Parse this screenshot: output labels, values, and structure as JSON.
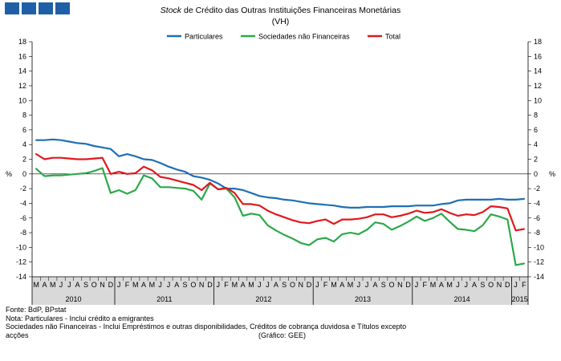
{
  "header": {
    "title_italic": "Stock",
    "title_rest": "de Crédito das Outras Instituições Financeiras Monetárias",
    "subtitle": "(VH)"
  },
  "colors": {
    "logo": "#1f5fa8",
    "particulares": "#1f6fb5",
    "sociedades": "#2ca84a",
    "total": "#e0191f"
  },
  "chart_data": {
    "type": "line",
    "title": "Stock de Crédito das Outras Instituições Financeiras Monetárias",
    "subtitle": "(VH)",
    "ylabel": "%",
    "ylabel_right": "%",
    "ylim": [
      -14,
      18
    ],
    "ytick_step": 2,
    "legend_position": "top",
    "grid": false,
    "x_months": [
      "M",
      "A",
      "M",
      "J",
      "J",
      "A",
      "S",
      "O",
      "N",
      "D",
      "J",
      "F",
      "M",
      "A",
      "M",
      "J",
      "J",
      "A",
      "S",
      "O",
      "N",
      "D",
      "J",
      "F",
      "M",
      "A",
      "M",
      "J",
      "J",
      "A",
      "S",
      "O",
      "N",
      "D",
      "J",
      "F",
      "M",
      "A",
      "M",
      "J",
      "J",
      "A",
      "S",
      "O",
      "N",
      "D",
      "J",
      "F",
      "M",
      "A",
      "M",
      "J",
      "J",
      "A",
      "S",
      "O",
      "N",
      "D",
      "J",
      "F"
    ],
    "years": [
      {
        "label": "2010",
        "start": 0,
        "count": 10
      },
      {
        "label": "2011",
        "start": 10,
        "count": 12
      },
      {
        "label": "2012",
        "start": 22,
        "count": 12
      },
      {
        "label": "2013",
        "start": 34,
        "count": 12
      },
      {
        "label": "2014",
        "start": 46,
        "count": 12
      },
      {
        "label": "2015",
        "start": 58,
        "count": 2
      }
    ],
    "series": [
      {
        "name": "Particulares",
        "color": "#1f6fb5",
        "values": [
          4.6,
          4.6,
          4.7,
          4.6,
          4.4,
          4.2,
          4.1,
          3.8,
          3.6,
          3.4,
          2.4,
          2.7,
          2.4,
          2.0,
          1.9,
          1.5,
          1.0,
          0.6,
          0.3,
          -0.3,
          -0.5,
          -0.8,
          -1.3,
          -2.0,
          -2.0,
          -2.2,
          -2.6,
          -3.0,
          -3.2,
          -3.3,
          -3.5,
          -3.6,
          -3.8,
          -4.0,
          -4.1,
          -4.2,
          -4.3,
          -4.5,
          -4.6,
          -4.6,
          -4.5,
          -4.5,
          -4.5,
          -4.4,
          -4.4,
          -4.4,
          -4.3,
          -4.3,
          -4.3,
          -4.1,
          -4.0,
          -3.6,
          -3.5,
          -3.5,
          -3.5,
          -3.5,
          -3.4,
          -3.5,
          -3.5,
          -3.4
        ]
      },
      {
        "name": "Sociedades não Financeiras",
        "color": "#2ca84a",
        "values": [
          0.7,
          -0.3,
          -0.2,
          -0.2,
          -0.1,
          0.0,
          0.1,
          0.4,
          0.8,
          -2.6,
          -2.2,
          -2.7,
          -2.2,
          -0.2,
          -0.6,
          -1.8,
          -1.8,
          -1.9,
          -2.0,
          -2.3,
          -3.5,
          -1.3,
          -2.1,
          -2.0,
          -3.2,
          -5.7,
          -5.4,
          -5.6,
          -7.0,
          -7.7,
          -8.3,
          -8.8,
          -9.4,
          -9.7,
          -8.9,
          -8.7,
          -9.2,
          -8.2,
          -8.0,
          -8.2,
          -7.6,
          -6.6,
          -6.8,
          -7.6,
          -7.1,
          -6.5,
          -5.8,
          -6.4,
          -6.0,
          -5.4,
          -6.5,
          -7.5,
          -7.6,
          -7.8,
          -7.0,
          -5.5,
          -5.8,
          -6.2,
          -12.4,
          -12.2
        ]
      },
      {
        "name": "Total",
        "color": "#e0191f",
        "values": [
          2.7,
          2.0,
          2.2,
          2.2,
          2.1,
          2.0,
          2.0,
          2.1,
          2.2,
          0.0,
          0.3,
          0.0,
          0.1,
          1.0,
          0.5,
          -0.4,
          -0.6,
          -0.9,
          -1.2,
          -1.5,
          -2.2,
          -1.2,
          -2.1,
          -1.9,
          -2.6,
          -4.1,
          -4.1,
          -4.3,
          -5.0,
          -5.5,
          -5.9,
          -6.3,
          -6.6,
          -6.7,
          -6.4,
          -6.2,
          -6.8,
          -6.2,
          -6.2,
          -6.1,
          -5.9,
          -5.5,
          -5.5,
          -5.9,
          -5.7,
          -5.4,
          -5.0,
          -5.3,
          -5.2,
          -4.8,
          -5.3,
          -5.7,
          -5.5,
          -5.6,
          -5.2,
          -4.4,
          -4.5,
          -4.7,
          -7.7,
          -7.5
        ]
      }
    ]
  },
  "notes": {
    "fonte": "Fonte: BdP, BPstat",
    "nota": "Nota: Particulares - Inclui crédito a emigrantes",
    "sociedades": "Sociedades não Financeiras - Inclui Empréstimos e outras disponibilidades,  Créditos de cobrança duvidosa  e Títulos exceptoacções",
    "sociedades_line1": "Sociedades não Financeiras - Inclui Empréstimos e outras disponibilidades,  Créditos de cobrança duvidosa  e Títulos excepto",
    "sociedades_line2": "acções",
    "credit": "(Gráfico: GEE)"
  }
}
